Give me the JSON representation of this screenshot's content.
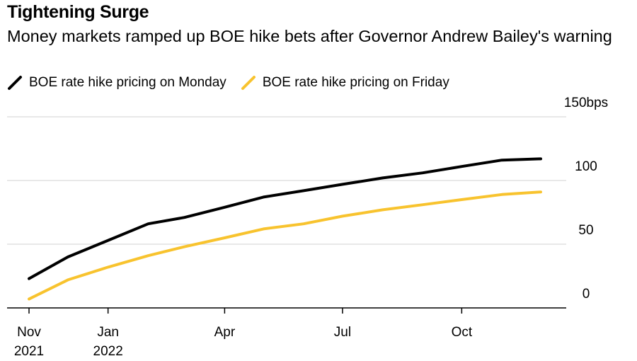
{
  "chart_data": {
    "type": "line",
    "title": "Tightening Surge",
    "subtitle": "Money markets ramped up BOE hike bets after Governor Andrew Bailey's warning",
    "xlabel": "",
    "ylabel": "",
    "x": [
      "2021-11-01",
      "2021-12-01",
      "2022-01-01",
      "2022-02-01",
      "2022-03-01",
      "2022-04-01",
      "2022-05-01",
      "2022-06-01",
      "2022-07-01",
      "2022-08-01",
      "2022-09-01",
      "2022-10-01",
      "2022-11-01",
      "2022-12-01"
    ],
    "series": [
      {
        "name": "BOE rate hike pricing on Monday",
        "color": "#000000",
        "values": [
          23,
          40,
          53,
          66,
          71,
          79,
          87,
          92,
          97,
          102,
          106,
          111,
          116,
          117
        ]
      },
      {
        "name": "BOE rate hike pricing on Friday",
        "color": "#f8c32e",
        "values": [
          7,
          22,
          32,
          41,
          48,
          55,
          62,
          66,
          72,
          77,
          81,
          85,
          89,
          91
        ]
      }
    ],
    "ylim": [
      0,
      150
    ],
    "y_ticks": [
      {
        "value": 150,
        "label": "150bps"
      },
      {
        "value": 100,
        "label": "100"
      },
      {
        "value": 50,
        "label": "50"
      },
      {
        "value": 0,
        "label": "0"
      }
    ],
    "x_ticks": [
      {
        "date": "2021-11-01",
        "label": "Nov",
        "sublabel": "2021"
      },
      {
        "date": "2022-01-01",
        "label": "Jan",
        "sublabel": "2022"
      },
      {
        "date": "2022-04-01",
        "label": "Apr",
        "sublabel": ""
      },
      {
        "date": "2022-07-01",
        "label": "Jul",
        "sublabel": ""
      },
      {
        "date": "2022-10-01",
        "label": "Oct",
        "sublabel": ""
      }
    ],
    "grid": true,
    "legend_position": "top-left"
  }
}
